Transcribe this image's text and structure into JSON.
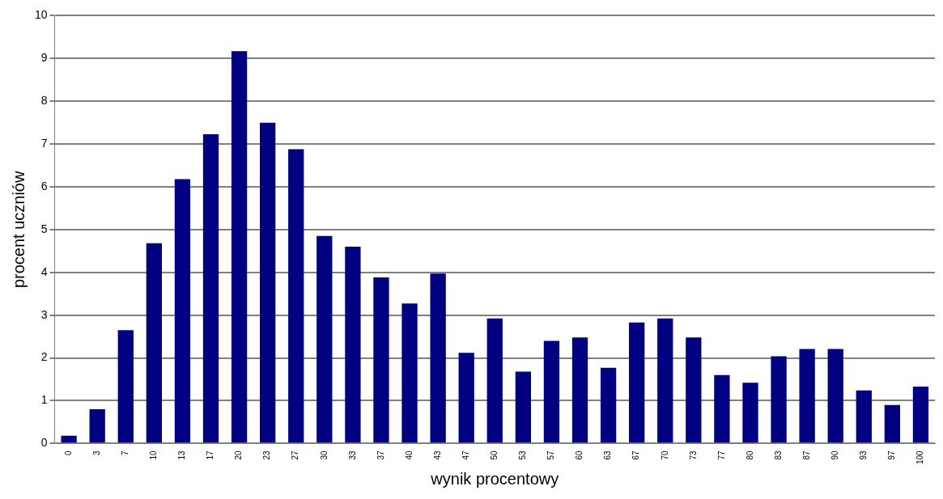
{
  "chart_data": {
    "type": "bar",
    "xlabel": "wynik procentowy",
    "ylabel": "procent uczniów",
    "categories": [
      "0",
      "3",
      "7",
      "10",
      "13",
      "17",
      "20",
      "23",
      "27",
      "30",
      "33",
      "37",
      "40",
      "43",
      "47",
      "50",
      "53",
      "57",
      "60",
      "63",
      "67",
      "70",
      "73",
      "77",
      "80",
      "83",
      "87",
      "90",
      "93",
      "97",
      "100"
    ],
    "values": [
      0.18,
      0.8,
      2.65,
      4.68,
      6.18,
      7.23,
      9.17,
      7.5,
      6.88,
      4.85,
      4.6,
      3.88,
      3.27,
      3.97,
      2.12,
      2.92,
      1.68,
      2.4,
      2.48,
      1.77,
      2.83,
      2.92,
      2.48,
      1.6,
      1.42,
      2.04,
      2.21,
      2.21,
      1.24,
      0.9,
      1.33
    ],
    "color": "#000080",
    "ylim": [
      0,
      10
    ],
    "yticks": [
      0,
      1,
      2,
      3,
      4,
      5,
      6,
      7,
      8,
      9,
      10
    ],
    "grid": "y",
    "legend": false
  }
}
